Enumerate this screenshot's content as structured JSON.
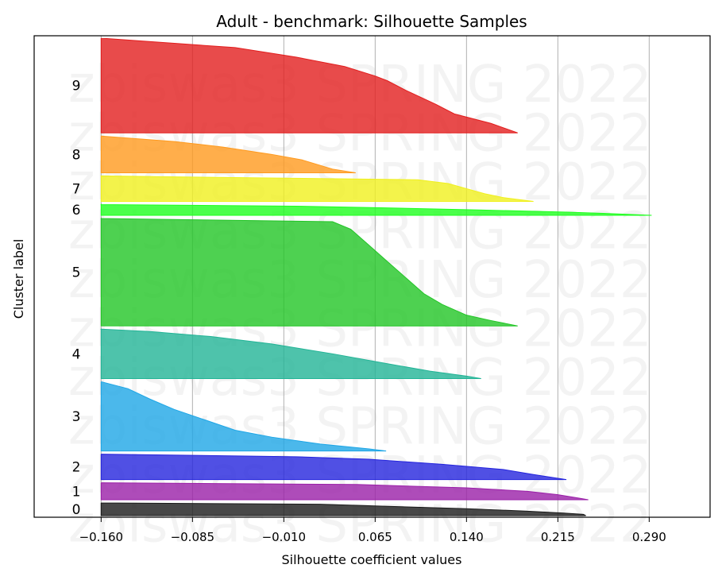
{
  "chart_data": {
    "type": "area",
    "title": "Adult - benchmark: Silhouette Samples",
    "xlabel": "Silhouette coefficient values",
    "ylabel": "Cluster label",
    "xticks": [
      "−0.160",
      "−0.085",
      "−0.010",
      "0.065",
      "0.140",
      "0.215",
      "0.290"
    ],
    "xtick_values": [
      -0.16,
      -0.085,
      -0.01,
      0.065,
      0.14,
      0.215,
      0.29
    ],
    "xlim": [
      -0.215,
      0.34
    ],
    "grid": "vertical",
    "watermark_lines": [
      "zbiswas3 SPRING 2022",
      "zbiswas3 SPRING 2022",
      "zbiswas3 SPRING 2022",
      "zbiswas3 SPRING 2022",
      "zbiswas3 SPRING 2022",
      "zbiswas3 SPRING 2022",
      "zbiswas3 SPRING 2022",
      "zbiswas3 SPRING 2022",
      "zbiswas3 SPRING 2022",
      "zbiswas3 SPRING 2022"
    ],
    "clusters": [
      {
        "label": "0",
        "color": "#1a1a1a",
        "size": 45,
        "profile": [
          [
            0,
            0.238
          ],
          [
            0.1,
            0.236
          ],
          [
            0.2,
            0.22
          ],
          [
            0.35,
            0.19
          ],
          [
            0.55,
            0.14
          ],
          [
            0.75,
            0.07
          ],
          [
            0.9,
            0.02
          ],
          [
            1,
            -0.16
          ]
        ]
      },
      {
        "label": "1",
        "color": "#9a1fa8",
        "size": 60,
        "profile": [
          [
            0,
            0.24
          ],
          [
            0.1,
            0.232
          ],
          [
            0.3,
            0.215
          ],
          [
            0.5,
            0.19
          ],
          [
            0.7,
            0.14
          ],
          [
            0.9,
            0.05
          ],
          [
            1,
            -0.16
          ]
        ]
      },
      {
        "label": "2",
        "color": "#2424dd",
        "size": 90,
        "profile": [
          [
            0,
            0.222
          ],
          [
            0.05,
            0.215
          ],
          [
            0.2,
            0.195
          ],
          [
            0.4,
            0.17
          ],
          [
            0.6,
            0.12
          ],
          [
            0.8,
            0.06
          ],
          [
            0.9,
            0.0
          ],
          [
            1,
            -0.16
          ]
        ]
      },
      {
        "label": "3",
        "color": "#1ea6e6",
        "size": 245,
        "profile": [
          [
            0,
            0.074
          ],
          [
            0.03,
            0.06
          ],
          [
            0.1,
            0.02
          ],
          [
            0.2,
            -0.02
          ],
          [
            0.3,
            -0.05
          ],
          [
            0.45,
            -0.075
          ],
          [
            0.6,
            -0.1
          ],
          [
            0.75,
            -0.12
          ],
          [
            0.9,
            -0.138
          ],
          [
            1,
            -0.16
          ]
        ]
      },
      {
        "label": "4",
        "color": "#22b496",
        "size": 175,
        "profile": [
          [
            0,
            0.152
          ],
          [
            0.05,
            0.14
          ],
          [
            0.15,
            0.11
          ],
          [
            0.3,
            0.075
          ],
          [
            0.5,
            0.03
          ],
          [
            0.7,
            -0.02
          ],
          [
            0.85,
            -0.07
          ],
          [
            0.95,
            -0.12
          ],
          [
            1,
            -0.16
          ]
        ]
      },
      {
        "label": "5",
        "color": "#22c526",
        "size": 380,
        "profile": [
          [
            0,
            0.182
          ],
          [
            0.05,
            0.16
          ],
          [
            0.1,
            0.14
          ],
          [
            0.2,
            0.12
          ],
          [
            0.3,
            0.105
          ],
          [
            0.45,
            0.09
          ],
          [
            0.6,
            0.075
          ],
          [
            0.75,
            0.06
          ],
          [
            0.9,
            0.045
          ],
          [
            0.97,
            0.03
          ],
          [
            1,
            -0.16
          ]
        ]
      },
      {
        "label": "6",
        "color": "#1eff1e",
        "size": 38,
        "profile": [
          [
            0,
            0.292
          ],
          [
            0.15,
            0.26
          ],
          [
            0.3,
            0.22
          ],
          [
            0.5,
            0.15
          ],
          [
            0.7,
            0.07
          ],
          [
            0.85,
            0.0
          ],
          [
            1,
            -0.16
          ]
        ]
      },
      {
        "label": "7",
        "color": "#f0f01e",
        "size": 90,
        "profile": [
          [
            0,
            0.195
          ],
          [
            0.15,
            0.17
          ],
          [
            0.3,
            0.155
          ],
          [
            0.5,
            0.14
          ],
          [
            0.7,
            0.125
          ],
          [
            0.85,
            0.1
          ],
          [
            1,
            -0.16
          ]
        ]
      },
      {
        "label": "8",
        "color": "#ff9a1e",
        "size": 130,
        "profile": [
          [
            0,
            0.049
          ],
          [
            0.1,
            0.03
          ],
          [
            0.2,
            0.02
          ],
          [
            0.35,
            0.005
          ],
          [
            0.5,
            -0.02
          ],
          [
            0.7,
            -0.06
          ],
          [
            0.85,
            -0.1
          ],
          [
            1,
            -0.16
          ]
        ]
      },
      {
        "label": "9",
        "color": "#e21e1e",
        "size": 335,
        "profile": [
          [
            0,
            0.182
          ],
          [
            0.1,
            0.16
          ],
          [
            0.2,
            0.13
          ],
          [
            0.3,
            0.115
          ],
          [
            0.45,
            0.09
          ],
          [
            0.55,
            0.075
          ],
          [
            0.6,
            0.065
          ],
          [
            0.7,
            0.04
          ],
          [
            0.8,
            0.0
          ],
          [
            0.9,
            -0.05
          ],
          [
            1,
            -0.16
          ]
        ]
      }
    ]
  }
}
